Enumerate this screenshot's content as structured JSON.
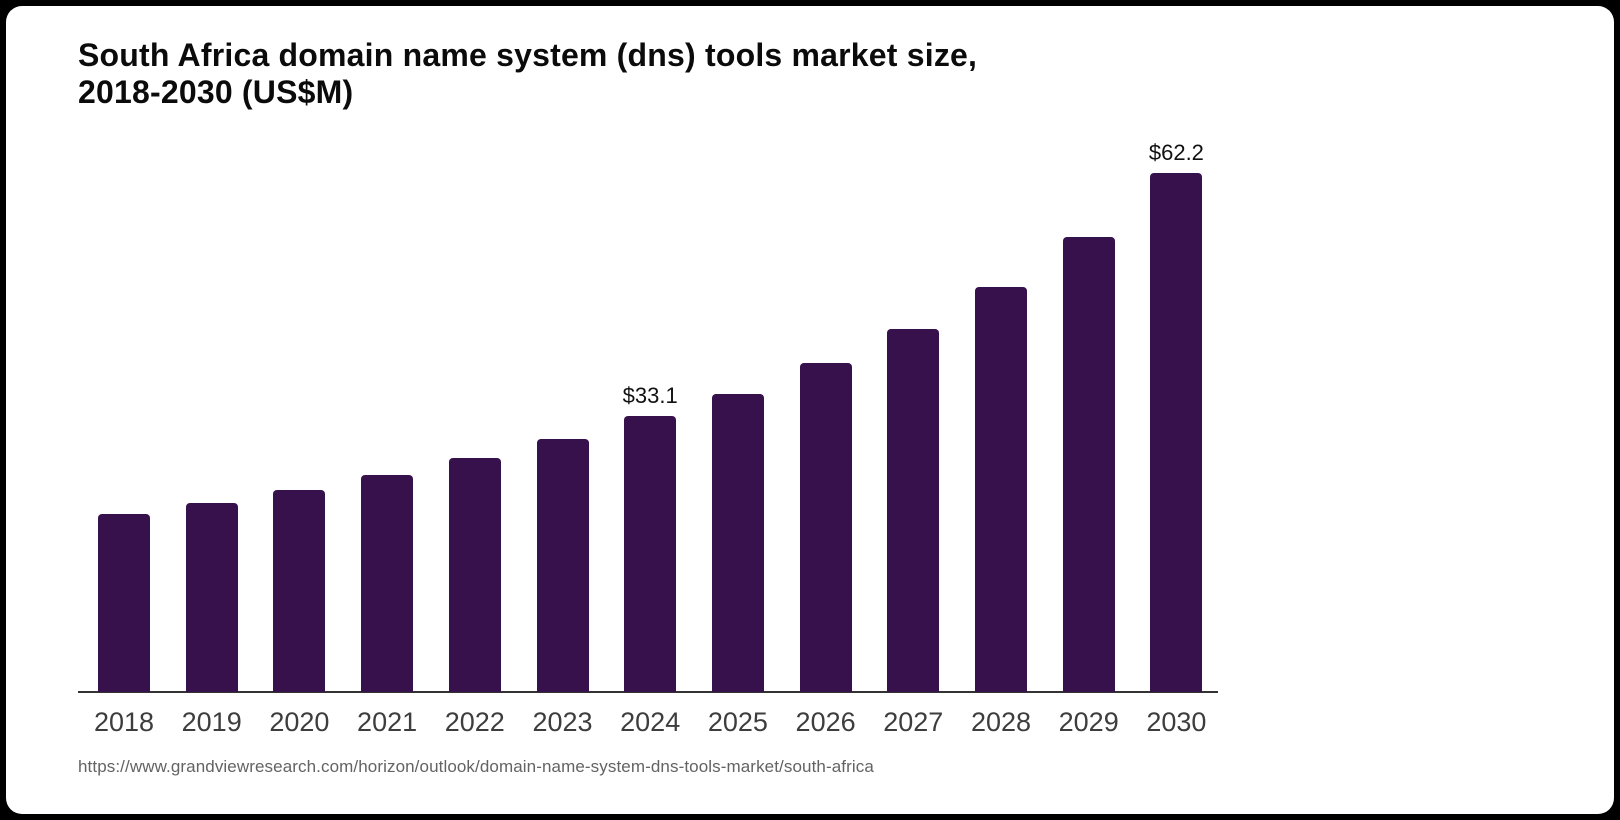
{
  "page": {
    "background_color": "#000000",
    "card_color": "#ffffff"
  },
  "chart_data": {
    "type": "bar",
    "title": "South Africa domain name system (dns) tools market size, 2018-2030 (US$M)",
    "title_lines": [
      "South Africa domain name system (dns) tools market size,",
      "2018-2030 (US$M)"
    ],
    "categories": [
      "2018",
      "2019",
      "2020",
      "2021",
      "2022",
      "2023",
      "2024",
      "2025",
      "2026",
      "2027",
      "2028",
      "2029",
      "2030"
    ],
    "values": [
      21.3,
      22.6,
      24.2,
      26.0,
      28.0,
      30.3,
      33.1,
      35.7,
      39.4,
      43.5,
      48.5,
      54.5,
      62.2
    ],
    "point_labels": [
      "",
      "",
      "",
      "",
      "",
      "",
      "$33.1",
      "",
      "",
      "",
      "",
      "",
      "$62.2"
    ],
    "xlabel": "",
    "ylabel": "",
    "ylim": [
      0,
      66.3
    ],
    "grid": false,
    "legend": false,
    "bar_color": "#36114B",
    "axis_color": "#333333",
    "tick_label_color": "#3d3d3d",
    "value_label_color": "#111111"
  },
  "source": {
    "url": "https://www.grandviewresearch.com/horizon/outlook/domain-name-system-dns-tools-market/south-africa"
  }
}
